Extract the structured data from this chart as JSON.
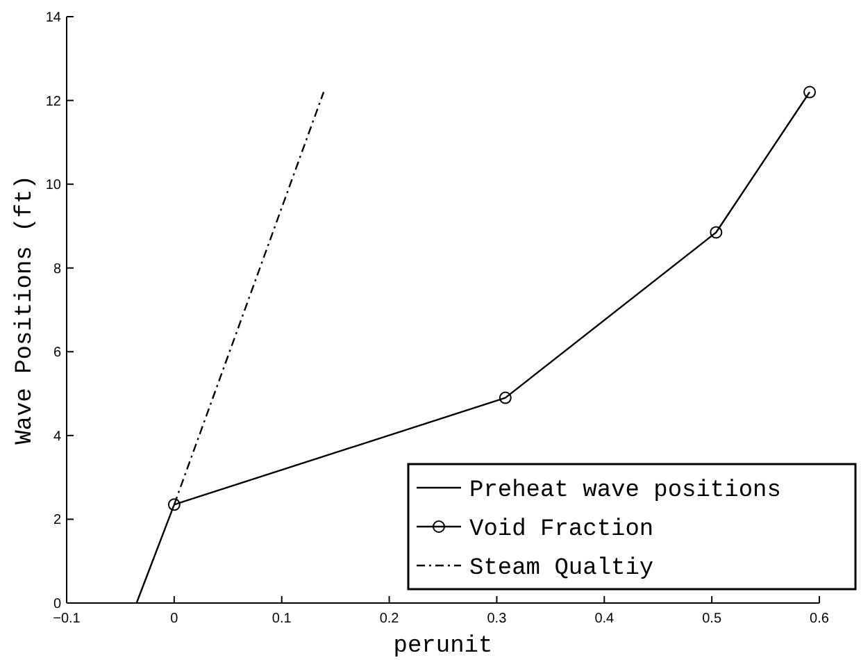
{
  "chart_data": {
    "type": "line",
    "xlabel": "perunit",
    "ylabel": "Wave Positions (ft)",
    "xlim": [
      -0.1,
      0.6
    ],
    "xticks": [
      {
        "value": -0.1,
        "label": "−0.1"
      },
      0,
      0.1,
      0.2,
      0.3,
      0.4,
      0.5,
      0.6
    ],
    "ylim": [
      0,
      14
    ],
    "yticks": [
      0,
      2,
      4,
      6,
      8,
      10,
      12,
      14
    ],
    "legend": "bottom right",
    "grid": false,
    "series": [
      {
        "name": "Preheat wave positions",
        "color": "#000000",
        "x": [
          -0.035,
          0
        ],
        "values": [
          0,
          2.35
        ],
        "line_style": "solid"
      },
      {
        "name": "Void Fraction",
        "color": "#000000",
        "x": [
          0,
          0.308,
          0.504,
          0.591
        ],
        "values": [
          2.35,
          4.9,
          8.85,
          12.2
        ],
        "marker": "circle",
        "line_style": "solid"
      },
      {
        "name": "Steam Qualtiy",
        "color": "#000000",
        "x": [
          0,
          0.139
        ],
        "values": [
          2.35,
          12.2
        ],
        "line_style": "dashdot"
      }
    ]
  }
}
